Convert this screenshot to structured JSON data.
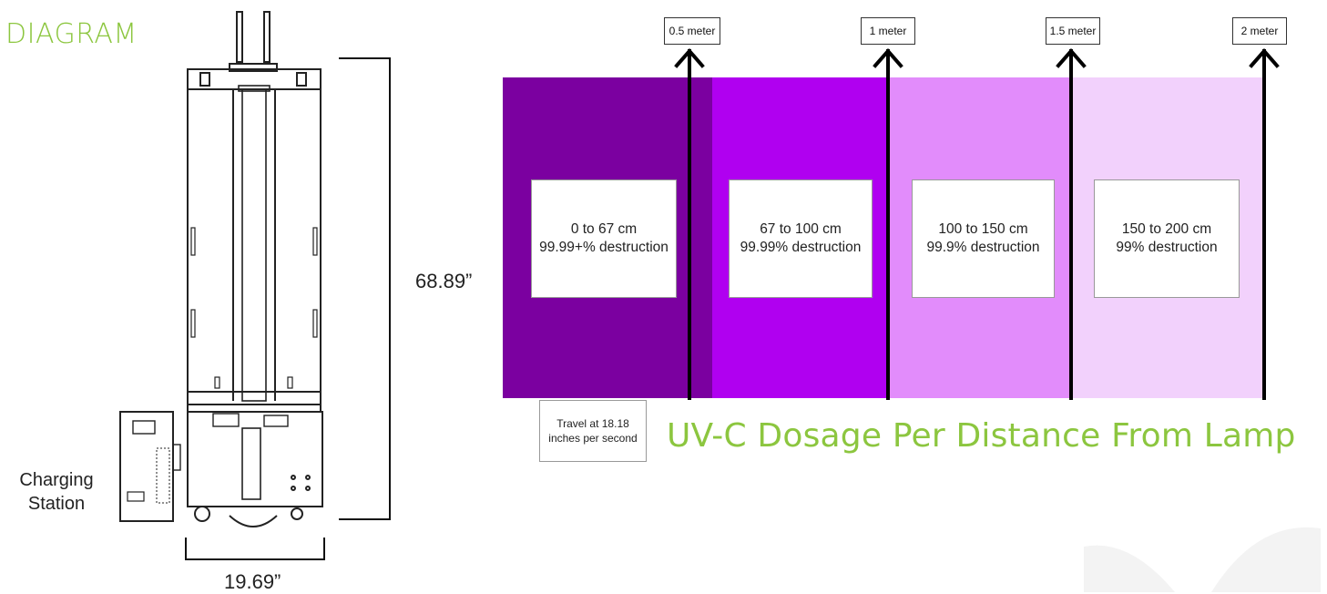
{
  "diagram": {
    "title": "DIAGRAM",
    "height_label": "68.89”",
    "width_label": "19.69”",
    "charging_station_label": [
      "Charging",
      "Station"
    ]
  },
  "uvc": {
    "title": "UV-C Dosage Per Distance From Lamp",
    "travel_note": [
      "Travel at 18.18",
      "inches per second"
    ],
    "markers": [
      {
        "label": "0.5 meter"
      },
      {
        "label": "1 meter"
      },
      {
        "label": "1.5 meter"
      },
      {
        "label": "2 meter"
      }
    ],
    "zones": [
      {
        "range": "0 to 67 cm",
        "effect": "99.99+% destruction",
        "color": "#7b00a0"
      },
      {
        "range": "67 to 100 cm",
        "effect": "99.99% destruction",
        "color": "#b000f0"
      },
      {
        "range": "100 to 150 cm",
        "effect": "99.9% destruction",
        "color": "#e28cfb"
      },
      {
        "range": "150 to 200 cm",
        "effect": "99% destruction",
        "color": "#f2d1fc"
      }
    ]
  },
  "colors": {
    "accent_green": "#8cc63f",
    "dark_purple": "#7b00a0"
  }
}
